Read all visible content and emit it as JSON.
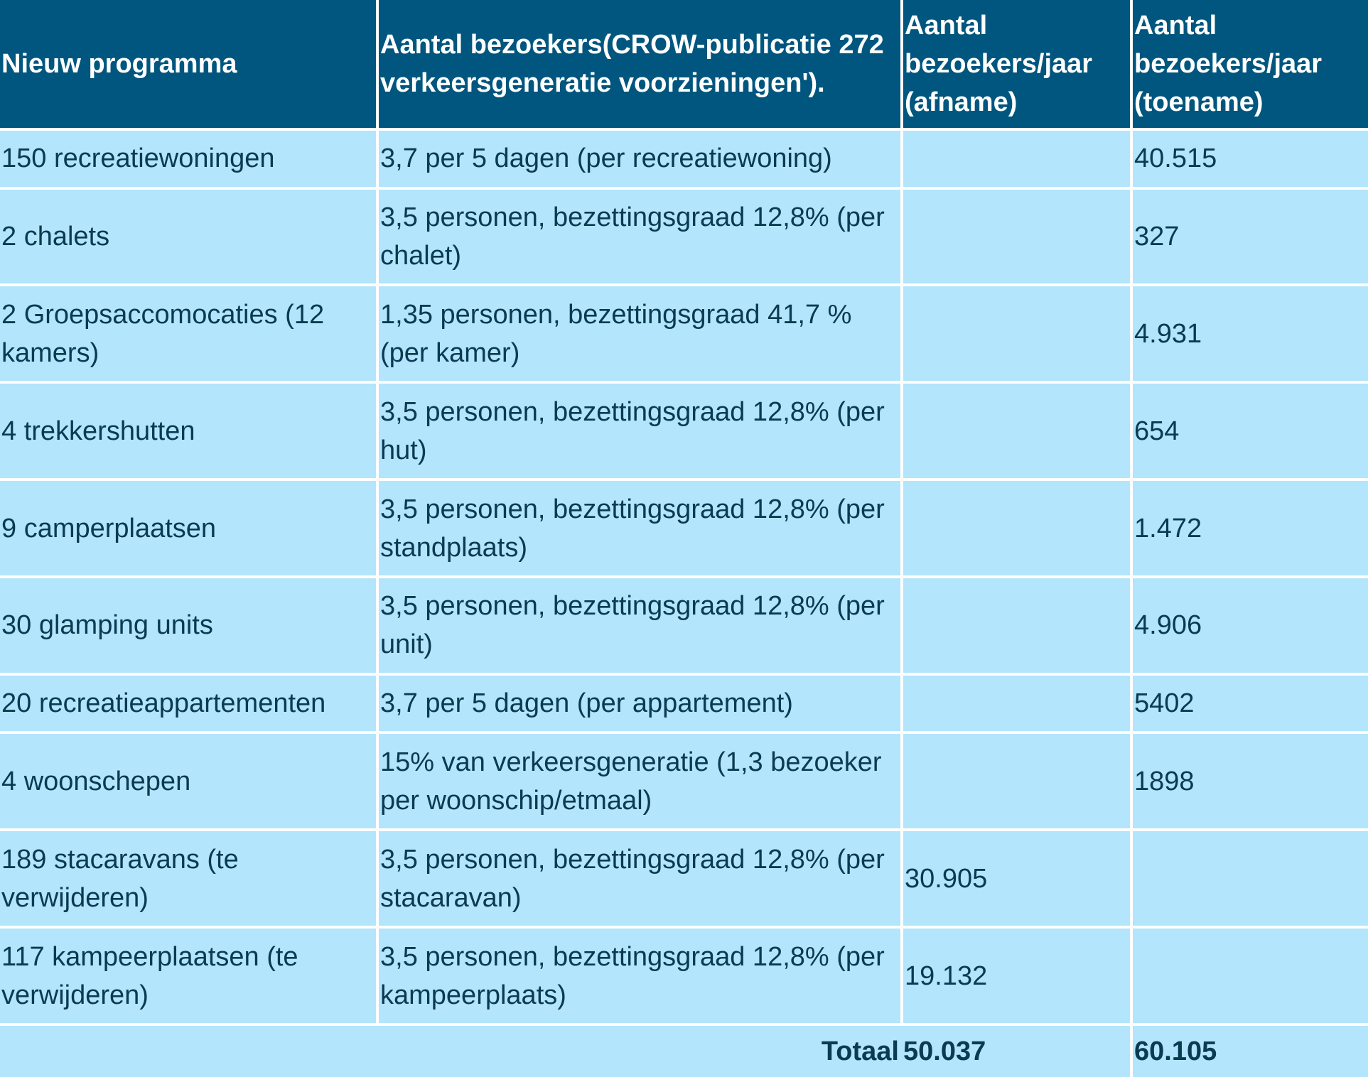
{
  "table": {
    "headers": [
      "Nieuw programma",
      "Aantal bezoekers(CROW-publicatie 272 verkeersgeneratie voorzieningen').",
      "Aantal bezoekers/jaar (afname)",
      "Aantal bezoekers/jaar (toename)"
    ],
    "rows": [
      {
        "programma": "150 recreatiewoningen",
        "bezoekers": "3,7 per 5 dagen (per recreatiewoning)",
        "afname": "",
        "toename": "40.515"
      },
      {
        "programma": "2 chalets",
        "bezoekers": "3,5 personen, bezettingsgraad 12,8% (per chalet)",
        "afname": "",
        "toename": "327"
      },
      {
        "programma": "2 Groepsaccomocaties (12 kamers)",
        "bezoekers": "1,35 personen, bezettingsgraad 41,7 % (per kamer)",
        "afname": "",
        "toename": "4.931"
      },
      {
        "programma": "4 trekkershutten",
        "bezoekers": "3,5 personen, bezettingsgraad 12,8% (per hut)",
        "afname": "",
        "toename": "654"
      },
      {
        "programma": "9 camperplaatsen",
        "bezoekers": "3,5 personen, bezettingsgraad 12,8% (per standplaats)",
        "afname": "",
        "toename": "1.472"
      },
      {
        "programma": "30 glamping units",
        "bezoekers": "3,5 personen, bezettingsgraad 12,8% (per unit)",
        "afname": "",
        "toename": "4.906"
      },
      {
        "programma": "20 recreatieappartementen",
        "bezoekers": "3,7 per 5 dagen (per appartement)",
        "afname": "",
        "toename": "5402"
      },
      {
        "programma": "4 woonschepen",
        "bezoekers": "15% van verkeersgeneratie (1,3 bezoeker per woonschip/etmaal)",
        "afname": "",
        "toename": "1898"
      },
      {
        "programma": "189 stacaravans (te verwijderen)",
        "bezoekers": "3,5 personen, bezettingsgraad 12,8% (per stacaravan)",
        "afname": "30.905",
        "toename": ""
      },
      {
        "programma": "117 kampeerplaatsen (te verwijderen)",
        "bezoekers": "3,5 personen, bezettingsgraad 12,8% (per kampeerplaats)",
        "afname": "19.132",
        "toename": ""
      }
    ],
    "total": {
      "label": "Totaal",
      "afname": "50.037",
      "toename": "60.105"
    }
  },
  "colors": {
    "header_bg": "#00567e",
    "header_text": "#ffffff",
    "cell_bg": "#b3e5fc",
    "cell_text": "#0b3a53"
  }
}
